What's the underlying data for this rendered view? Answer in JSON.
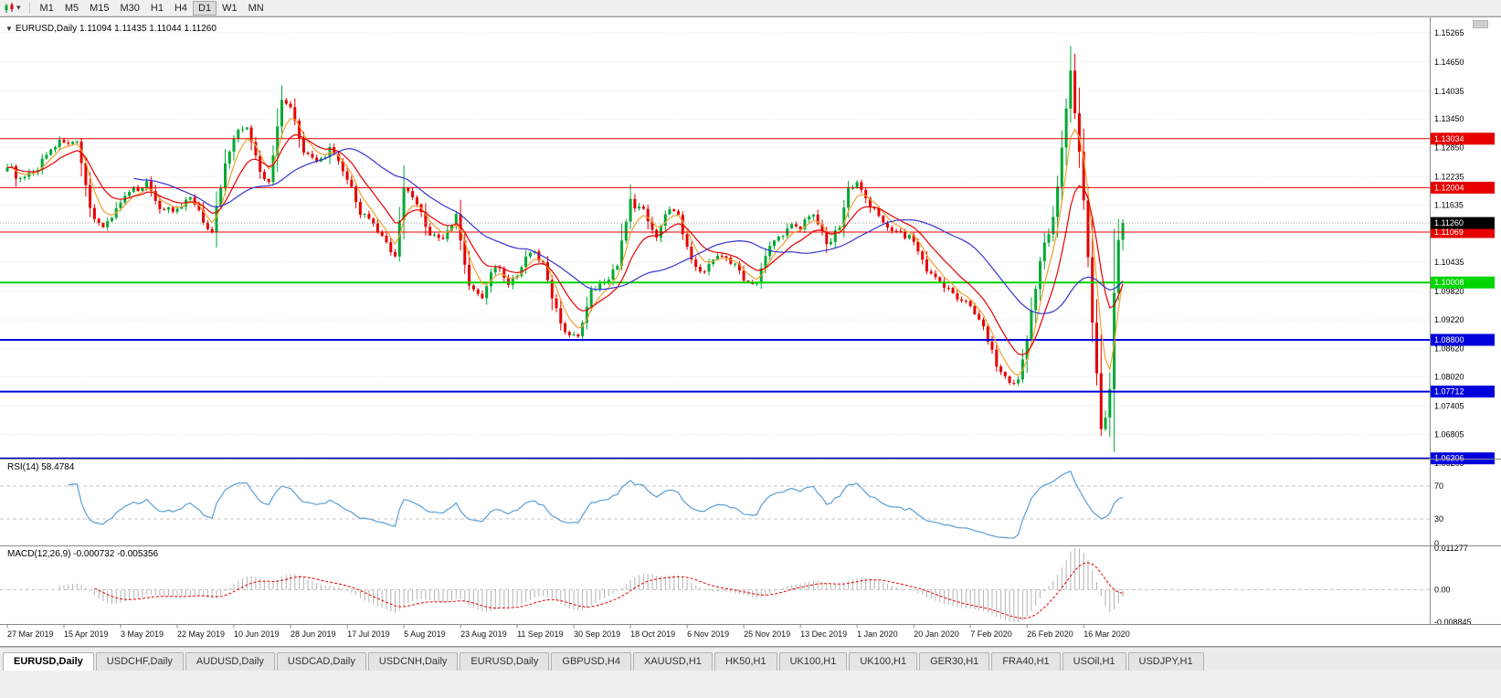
{
  "toolbar": {
    "dropdown_arrow": "▾",
    "timeframes": [
      "M1",
      "M5",
      "M15",
      "M30",
      "H1",
      "H4",
      "D1",
      "W1",
      "MN"
    ],
    "active_timeframe": "D1"
  },
  "chart_header": {
    "marker": "▼",
    "symbol": "EURUSD,Daily",
    "ohlc": "1.11094 1.11435 1.11044 1.11260"
  },
  "price_axis_labels": [
    "1.15265",
    "1.14650",
    "1.14035",
    "1.13450",
    "1.12850",
    "1.12235",
    "1.11635",
    "1.11035",
    "1.10435",
    "1.09820",
    "1.09220",
    "1.08620",
    "1.08020",
    "1.07405",
    "1.06805",
    "1.06205"
  ],
  "hlines": [
    {
      "price": 1.13034,
      "label": "1.13034",
      "color": "#e60000"
    },
    {
      "price": 1.12004,
      "label": "1.12004",
      "color": "#e60000"
    },
    {
      "price": 1.11069,
      "label": "1.11069",
      "color": "#e60000"
    },
    {
      "price": 1.10008,
      "label": "1.10008",
      "color": "#00d500"
    },
    {
      "price": 1.088,
      "label": "1.08800",
      "color": "#0000dd"
    },
    {
      "price": 1.07712,
      "label": "1.07712",
      "color": "#0000dd"
    },
    {
      "price": 1.06306,
      "label": "1.06306",
      "color": "#0000dd"
    }
  ],
  "current_price": {
    "label": "1.11260",
    "value": 1.1126,
    "box_color": "#000000"
  },
  "rsi_panel": {
    "title": "RSI(14) 58.4784",
    "period": 14,
    "axis_labels": [
      "100",
      "70",
      "30",
      "0"
    ],
    "levels": [
      70,
      30
    ],
    "line_color": "#5b9fd6"
  },
  "macd_panel": {
    "title": "MACD(12,26,9) -0.000732 -0.005356",
    "params": [
      12,
      26,
      9
    ],
    "axis_labels": [
      "0.011277",
      "0.00",
      "-0.008845"
    ],
    "max": 0.011277,
    "min": -0.008845,
    "hist_color": "#b4b4b4",
    "signal_color": "#e60000"
  },
  "date_axis": [
    "27 Mar 2019",
    "15 Apr 2019",
    "3 May 2019",
    "22 May 2019",
    "10 Jun 2019",
    "28 Jun 2019",
    "17 Jul 2019",
    "5 Aug 2019",
    "23 Aug 2019",
    "11 Sep 2019",
    "30 Sep 2019",
    "18 Oct 2019",
    "6 Nov 2019",
    "25 Nov 2019",
    "13 Dec 2019",
    "1 Jan 2020",
    "20 Jan 2020",
    "7 Feb 2020",
    "26 Feb 2020",
    "16 Mar 2020"
  ],
  "tabs": {
    "active_index": 0,
    "items": [
      "EURUSD,Daily",
      "USDCHF,Daily",
      "AUDUSD,Daily",
      "USDCAD,Daily",
      "USDCNH,Daily",
      "EURUSD,Daily",
      "GBPUSD,H4",
      "XAUUSD,H1",
      "HK50,H1",
      "UK100,H1",
      "UK100,H1",
      "GER30,H1",
      "FRA40,H1",
      "USOil,H1",
      "USDJPY,H1"
    ],
    "note": ""
  },
  "chart_data": {
    "type": "candlestick",
    "symbol": "EURUSD",
    "timeframe": "Daily",
    "ohlc_current": {
      "open": 1.11094,
      "high": 1.11435,
      "low": 1.11044,
      "close": 1.1126
    },
    "ylim": [
      1.063,
      1.1555
    ],
    "candle_count": 257,
    "bars_per_date_label": 13,
    "colors": {
      "up": "#00a832",
      "down": "#e60000"
    },
    "moving_averages": [
      {
        "name": "fast",
        "type": "ema",
        "period": 5,
        "color": "#f0a030"
      },
      {
        "name": "medium",
        "type": "ema",
        "period": 12,
        "color": "#e60000"
      },
      {
        "name": "slow",
        "type": "sma",
        "period": 30,
        "color": "#3535cd"
      }
    ],
    "close_anchors": [
      [
        0,
        1.125
      ],
      [
        3,
        1.1215
      ],
      [
        6,
        1.123
      ],
      [
        10,
        1.1285
      ],
      [
        13,
        1.13
      ],
      [
        16,
        1.129
      ],
      [
        19,
        1.1155
      ],
      [
        22,
        1.1115
      ],
      [
        26,
        1.117
      ],
      [
        29,
        1.1195
      ],
      [
        32,
        1.121
      ],
      [
        35,
        1.116
      ],
      [
        39,
        1.115
      ],
      [
        42,
        1.118
      ],
      [
        45,
        1.113
      ],
      [
        47,
        1.111
      ],
      [
        50,
        1.125
      ],
      [
        52,
        1.131
      ],
      [
        55,
        1.133
      ],
      [
        58,
        1.123
      ],
      [
        60,
        1.121
      ],
      [
        63,
        1.139
      ],
      [
        65,
        1.137
      ],
      [
        68,
        1.128
      ],
      [
        71,
        1.125
      ],
      [
        74,
        1.128
      ],
      [
        78,
        1.122
      ],
      [
        81,
        1.115
      ],
      [
        84,
        1.112
      ],
      [
        87,
        1.108
      ],
      [
        89,
        1.106
      ],
      [
        91,
        1.12
      ],
      [
        94,
        1.117
      ],
      [
        97,
        1.11
      ],
      [
        100,
        1.109
      ],
      [
        103,
        1.114
      ],
      [
        106,
        1.099
      ],
      [
        109,
        1.097
      ],
      [
        112,
        1.104
      ],
      [
        115,
        1.1
      ],
      [
        117,
        1.101
      ],
      [
        120,
        1.107
      ],
      [
        123,
        1.104
      ],
      [
        126,
        1.094
      ],
      [
        128,
        1.09
      ],
      [
        130,
        1.089
      ],
      [
        131,
        1.088
      ],
      [
        134,
        1.098
      ],
      [
        137,
        1.1
      ],
      [
        140,
        1.104
      ],
      [
        143,
        1.117
      ],
      [
        146,
        1.115
      ],
      [
        149,
        1.11
      ],
      [
        152,
        1.116
      ],
      [
        154,
        1.115
      ],
      [
        156,
        1.107
      ],
      [
        159,
        1.102
      ],
      [
        162,
        1.105
      ],
      [
        165,
        1.106
      ],
      [
        169,
        1.101
      ],
      [
        172,
        1.1
      ],
      [
        175,
        1.108
      ],
      [
        178,
        1.11
      ],
      [
        180,
        1.113
      ],
      [
        182,
        1.112
      ],
      [
        185,
        1.115
      ],
      [
        188,
        1.108
      ],
      [
        191,
        1.112
      ],
      [
        193,
        1.12
      ],
      [
        195,
        1.121
      ],
      [
        198,
        1.116
      ],
      [
        201,
        1.113
      ],
      [
        204,
        1.111
      ],
      [
        208,
        1.109
      ],
      [
        211,
        1.102
      ],
      [
        214,
        1.1
      ],
      [
        217,
        1.098
      ],
      [
        221,
        1.095
      ],
      [
        224,
        1.091
      ],
      [
        227,
        1.083
      ],
      [
        230,
        1.079
      ],
      [
        232,
        1.08
      ],
      [
        234,
        1.088
      ],
      [
        237,
        1.105
      ],
      [
        240,
        1.114
      ],
      [
        242,
        1.128
      ],
      [
        244,
        1.145
      ],
      [
        245,
        1.136
      ],
      [
        247,
        1.118
      ],
      [
        249,
        1.092
      ],
      [
        251,
        1.069
      ],
      [
        252,
        1.072
      ],
      [
        253,
        1.078
      ],
      [
        254,
        1.098
      ],
      [
        255,
        1.109
      ],
      [
        256,
        1.1126
      ]
    ]
  }
}
